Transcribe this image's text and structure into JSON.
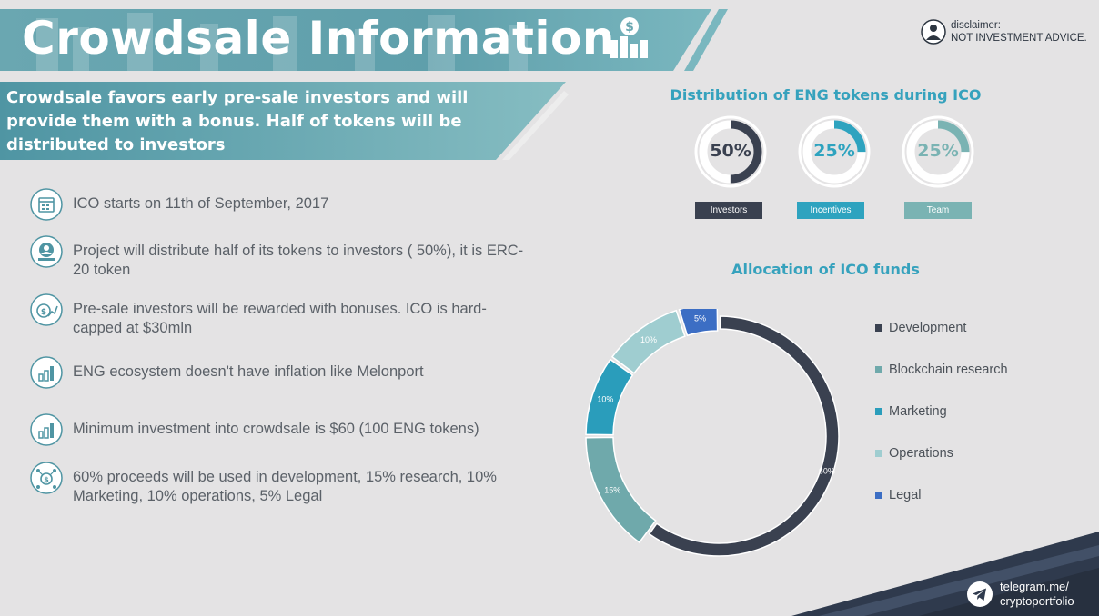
{
  "header": {
    "title": "Crowdsale Information",
    "icon": "money-chart-icon",
    "disclaimer_label": "disclaimer:",
    "disclaimer_text": "NOT INVESTMENT ADVICE."
  },
  "subtitle": "Crowdsale favors early pre-sale investors and will provide them with a bonus. Half of tokens will be distributed to investors",
  "facts": [
    {
      "icon": "calendar-icon",
      "text": "ICO starts on 11th of September, 2017"
    },
    {
      "icon": "investor-globe-icon",
      "text": "Project will distribute half of its tokens to investors ( 50%), it is ERC-20 token"
    },
    {
      "icon": "dollar-growth-icon",
      "text": "Pre-sale investors will be rewarded with bonuses. ICO is hard-capped at $30mln"
    },
    {
      "icon": "bar-chart-icon",
      "text": "ENG ecosystem doesn't have inflation like Melonport"
    },
    {
      "icon": "bar-chart-icon",
      "text": "Minimum investment into crowdsale is $60 (100 ENG tokens)"
    },
    {
      "icon": "money-network-icon",
      "text": "60% proceeds will be used in development, 15% research, 10% Marketing, 10% operations, 5% Legal"
    }
  ],
  "distribution": {
    "title": "Distribution of ENG tokens during ICO",
    "items": [
      {
        "label": "Investors",
        "percent": "50%",
        "value": 50,
        "color": "#3a4150"
      },
      {
        "label": "Incentives",
        "percent": "25%",
        "value": 25,
        "color": "#2ea3bf"
      },
      {
        "label": "Team",
        "percent": "25%",
        "value": 25,
        "color": "#7ab3b3"
      }
    ]
  },
  "allocation": {
    "title": "Allocation of ICO funds"
  },
  "chart_data": {
    "type": "pie",
    "donut": true,
    "categories": [
      "Development",
      "Blockchain research",
      "Marketing",
      "Operations",
      "Legal"
    ],
    "values": [
      60,
      15,
      10,
      10,
      5
    ],
    "labels": [
      "60%",
      "15%",
      "10%",
      "10%",
      "5%"
    ],
    "colors": [
      "#3a4150",
      "#6fa9ab",
      "#2a9dbb",
      "#9fcdd0",
      "#3c6ec4"
    ],
    "legend": "right"
  },
  "footer": {
    "line1": "telegram.me/",
    "line2": "cryptoportfolio",
    "icon": "telegram-icon"
  }
}
